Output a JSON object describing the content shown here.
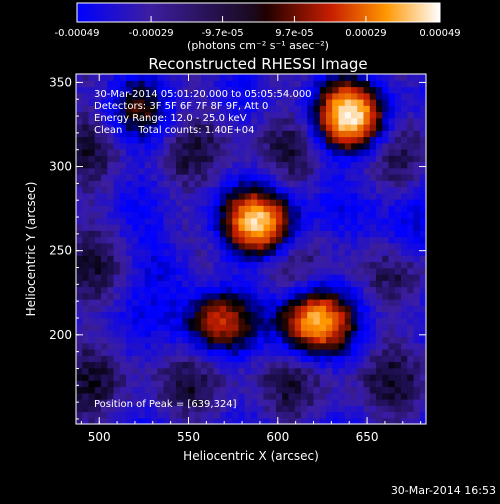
{
  "chart_data": {
    "type": "heatmap",
    "title": "Reconstructed RHESSI Image",
    "xlabel": "Heliocentric X (arcsec)",
    "ylabel": "Heliocentric Y (arcsec)",
    "xlim": [
      487,
      683
    ],
    "ylim": [
      147,
      355
    ],
    "x_ticks": [
      "500",
      "550",
      "600",
      "650"
    ],
    "x_tick_values": [
      500,
      550,
      600,
      650
    ],
    "y_ticks": [
      "200",
      "250",
      "300",
      "350"
    ],
    "y_tick_values": [
      200,
      250,
      300,
      350
    ],
    "colorbar": {
      "label": "(photons cm⁻² s⁻¹ asec⁻²)",
      "tick_labels": [
        "-0.00049",
        "-0.00029",
        "-9.7e-05",
        "9.7e-05",
        "0.00029",
        "0.00049"
      ],
      "range": [
        -0.00049,
        0.00049
      ]
    },
    "annotations": [
      "30-Mar-2014 05:01:20.000 to 05:05:54.000",
      "Detectors: 3F 5F 6F 7F 8F 9F, Att 0",
      "Energy Range: 12.0 - 25.0 keV",
      "Clean     Total counts: 1.40E+04"
    ],
    "peak_label": "Position of Peak = [639,324]",
    "sources": [
      {
        "x": 641,
        "y": 329,
        "intensity": 1.0
      },
      {
        "x": 590,
        "y": 266,
        "intensity": 0.9
      },
      {
        "x": 620,
        "y": 208,
        "intensity": 0.85
      },
      {
        "x": 565,
        "y": 208,
        "intensity": 0.55
      },
      {
        "x": 523,
        "y": 330,
        "intensity": 0.35
      },
      {
        "x": 540,
        "y": 240,
        "intensity": 0.3
      },
      {
        "x": 670,
        "y": 260,
        "intensity": 0.25
      }
    ],
    "colormap": [
      "#000000",
      "#3c1ea0",
      "#0000ff",
      "#000000",
      "#c81e00",
      "#ff9600",
      "#ffffff"
    ]
  },
  "footer_timestamp": "30-Mar-2014 16:53"
}
